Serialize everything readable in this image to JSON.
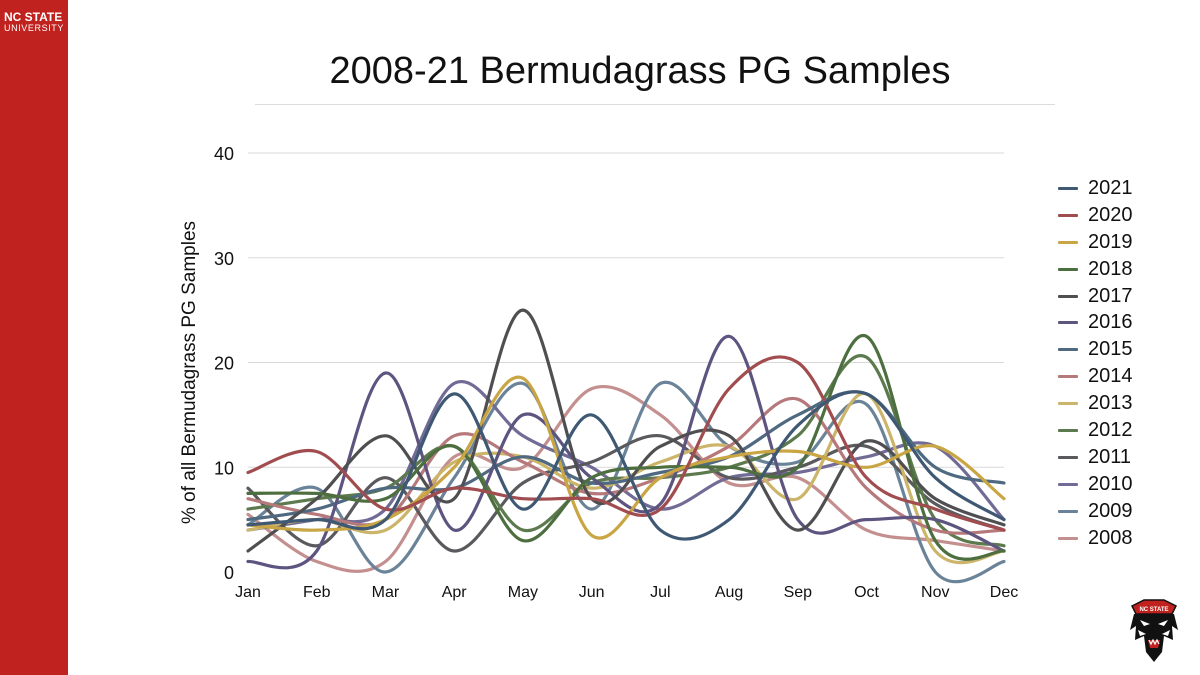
{
  "brand": {
    "line1": "NC STATE",
    "line2": "UNIVERSITY"
  },
  "slide": {
    "title": "2008-21 Bermudagrass PG Samples"
  },
  "colors": {
    "sidebar": "#c0231f",
    "grid": "#d9d9d9"
  },
  "chart_data": {
    "type": "line",
    "title": "2008-21 Bermudagrass PG Samples",
    "xlabel": "",
    "ylabel": "% of all Bermudagrass PG Samples",
    "ylim": [
      0,
      40
    ],
    "yticks": [
      0,
      10,
      20,
      30,
      40
    ],
    "grid": true,
    "legend_position": "right",
    "categories": [
      "Jan",
      "Feb",
      "Mar",
      "Apr",
      "May",
      "Jun",
      "Jul",
      "Aug",
      "Sep",
      "Oct",
      "Nov",
      "Dec"
    ],
    "series": [
      {
        "name": "2021",
        "color": "#3f5873",
        "values": [
          4.5,
          5.0,
          5.0,
          17.0,
          6.0,
          15.0,
          4.0,
          5.0,
          14.0,
          17.0,
          9.0,
          5.0
        ]
      },
      {
        "name": "2020",
        "color": "#a14d4f",
        "values": [
          9.5,
          11.5,
          6.0,
          8.0,
          7.0,
          7.0,
          6.0,
          17.5,
          20.0,
          9.0,
          6.0,
          4.0
        ]
      },
      {
        "name": "2019",
        "color": "#c9a544",
        "values": [
          4.5,
          4.0,
          5.0,
          10.0,
          18.5,
          3.5,
          9.0,
          11.0,
          11.5,
          10.0,
          12.0,
          7.0
        ]
      },
      {
        "name": "2018",
        "color": "#4d6e3f",
        "values": [
          7.5,
          7.5,
          7.0,
          12.0,
          3.0,
          9.0,
          10.0,
          10.0,
          10.0,
          22.5,
          3.0,
          2.0
        ]
      },
      {
        "name": "2017",
        "color": "#4f4f52",
        "values": [
          2.0,
          7.0,
          13.0,
          7.0,
          25.0,
          7.0,
          12.0,
          13.0,
          4.0,
          12.5,
          7.0,
          4.5
        ]
      },
      {
        "name": "2016",
        "color": "#5e5480",
        "values": [
          1.0,
          2.0,
          19.0,
          4.0,
          15.0,
          9.0,
          6.5,
          22.5,
          5.0,
          5.0,
          5.0,
          2.0
        ]
      },
      {
        "name": "2015",
        "color": "#4f6a80",
        "values": [
          5.0,
          6.0,
          8.0,
          8.0,
          11.0,
          8.5,
          9.5,
          11.0,
          15.0,
          17.0,
          10.0,
          8.5
        ]
      },
      {
        "name": "2014",
        "color": "#b5797b",
        "values": [
          7.0,
          5.5,
          5.0,
          13.0,
          10.5,
          7.5,
          9.0,
          12.0,
          16.5,
          8.0,
          4.0,
          4.0
        ]
      },
      {
        "name": "2013",
        "color": "#ccb56a",
        "values": [
          4.0,
          5.0,
          4.0,
          10.5,
          11.0,
          8.0,
          10.5,
          12.0,
          7.0,
          17.0,
          2.0,
          2.0
        ]
      },
      {
        "name": "2012",
        "color": "#5c7a4d",
        "values": [
          6.0,
          7.0,
          8.0,
          12.0,
          4.0,
          8.5,
          9.0,
          10.0,
          13.0,
          20.5,
          5.0,
          2.5
        ]
      },
      {
        "name": "2011",
        "color": "#5a5a5e",
        "values": [
          8.0,
          2.5,
          9.0,
          2.0,
          8.5,
          10.5,
          13.0,
          9.0,
          10.0,
          12.0,
          6.5,
          4.0
        ]
      },
      {
        "name": "2010",
        "color": "#716b96",
        "values": [
          4.0,
          5.0,
          6.0,
          18.0,
          13.0,
          10.0,
          6.0,
          9.0,
          9.5,
          11.0,
          12.0,
          5.0
        ]
      },
      {
        "name": "2009",
        "color": "#6a8399",
        "values": [
          4.5,
          8.0,
          0.0,
          9.0,
          18.0,
          6.0,
          18.0,
          12.0,
          10.5,
          16.0,
          0.0,
          1.0
        ]
      },
      {
        "name": "2008",
        "color": "#c48f8f",
        "values": [
          5.5,
          1.0,
          1.0,
          11.0,
          10.0,
          17.5,
          15.0,
          8.5,
          9.0,
          4.0,
          3.0,
          2.0
        ]
      }
    ]
  }
}
